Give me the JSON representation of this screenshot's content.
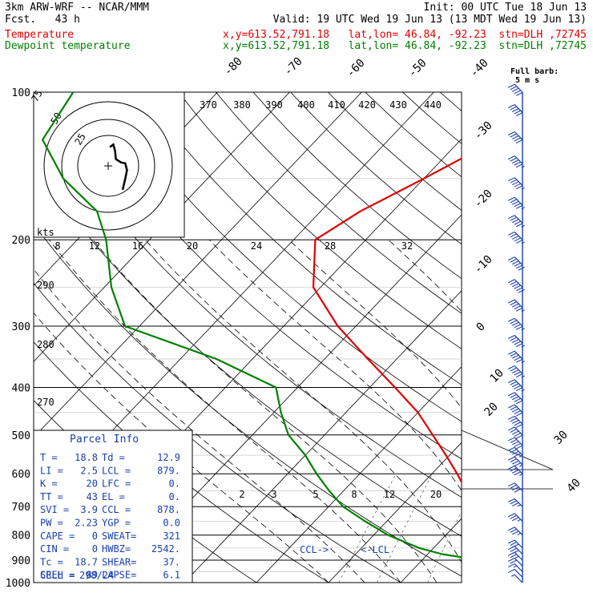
{
  "header": {
    "model": "3km ARW-WRF -- NCAR/MMM",
    "init": "Init: 00 UTC Tue 18 Jun 13",
    "fcst_label": "Fcst.",
    "fcst_value": "43 h",
    "valid": "Valid: 19 UTC Wed 19 Jun 13 (13 MDT Wed 19 Jun 13)",
    "temp_label": "Temperature",
    "temp_loc": "x,y=613.52,791.18   lat,lon= 46.84, -92.23  stn=DLH ,72745",
    "dew_label": "Dewpoint temperature",
    "dew_loc": "x,y=613.52,791.18   lat,lon= 46.84, -92.23  stn=DLH ,72745"
  },
  "colors": {
    "temperature": "#e00000",
    "dewpoint": "#008000",
    "parcel_info": "#1a3fb0",
    "barbs": "#1a3fb0"
  },
  "chart_data": {
    "type": "line",
    "yscale": "log-pressure",
    "ylim": [
      1000,
      100
    ],
    "pressure_levels": [
      100,
      200,
      300,
      400,
      500,
      600,
      700,
      800,
      900,
      1000
    ],
    "skew_t_labels": [
      -80,
      -70,
      -60,
      -50,
      -40,
      -30,
      -20,
      -10,
      0,
      10,
      20,
      30,
      40
    ],
    "theta_labels": [
      370,
      380,
      390,
      400,
      410,
      420,
      430,
      440
    ],
    "theta_e_labels": [
      290,
      280,
      270
    ],
    "mixing_ratio_labels_top": [
      8,
      12,
      16,
      20,
      24,
      28,
      32
    ],
    "mixing_ratio_labels_low": [
      2,
      3,
      5,
      8,
      12,
      20
    ],
    "series": [
      {
        "name": "Temperature",
        "pressure": [
          1000,
          975,
          950,
          925,
          900,
          875,
          850,
          800,
          750,
          700,
          650,
          600,
          550,
          500,
          450,
          400,
          350,
          300,
          250,
          200,
          175,
          150,
          125,
          100
        ],
        "temperature": [
          18.8,
          17.0,
          15.3,
          13.5,
          11.5,
          10.5,
          8.5,
          6.5,
          3.5,
          0.5,
          -3.0,
          -6.5,
          -10.5,
          -15.0,
          -20.0,
          -26.5,
          -34.0,
          -42.5,
          -51.0,
          -57.0,
          -54.5,
          -50.0,
          -45.0,
          -45.5
        ]
      },
      {
        "name": "Dewpoint temperature",
        "pressure": [
          1000,
          975,
          950,
          925,
          900,
          875,
          850,
          800,
          750,
          700,
          650,
          600,
          550,
          500,
          450,
          400,
          350,
          300,
          250,
          200,
          175,
          150,
          125,
          100
        ],
        "temperature": [
          12.9,
          12.5,
          12.0,
          10.8,
          8.0,
          2.0,
          -2.0,
          -8.0,
          -13.0,
          -18.0,
          -22.0,
          -26.0,
          -30.0,
          -35.0,
          -39.0,
          -43.0,
          -55.0,
          -72.0,
          -79.0,
          -86.0,
          -91.0,
          -100.0,
          -108.0,
          -110.0
        ]
      }
    ],
    "annotations": [
      "CCL->",
      "<-LCL",
      "kts",
      "Full barb:",
      "5 m s"
    ]
  },
  "hodograph": {
    "ring_labels": [
      "75",
      "50",
      "25"
    ],
    "unit": "kts",
    "trace": [
      [
        2,
        22
      ],
      [
        6,
        25
      ],
      [
        8,
        18
      ],
      [
        9,
        8
      ],
      [
        15,
        4
      ],
      [
        20,
        3
      ],
      [
        22,
        -5
      ],
      [
        20,
        -15
      ],
      [
        17,
        -28
      ]
    ]
  },
  "parcel": {
    "title": "Parcel Info",
    "rows": [
      [
        "T   =",
        "18.8",
        "Td =",
        "12.9"
      ],
      [
        "LI  =",
        "2.5",
        "LCL =",
        "879."
      ],
      [
        "K   =",
        "20",
        "LFC =",
        "0."
      ],
      [
        "TT  =",
        "43",
        "EL  =",
        "0."
      ],
      [
        "SVI =",
        "3.9",
        "CCL =",
        "878."
      ],
      [
        "PW  =",
        "2.23",
        "YGP =",
        "0.0"
      ],
      [
        "CAPE =",
        "0",
        "SWEAT=",
        "321"
      ],
      [
        "CIN  =",
        "0",
        "HWBZ=",
        "2542."
      ],
      [
        "Tc   =",
        "18.7",
        "SHEAR=",
        "37."
      ],
      [
        "SREH =",
        "89",
        "LAPSE=",
        "6.1"
      ]
    ],
    "cell_label": "CELL =",
    "cell_value": "298/24"
  },
  "barbs": {
    "levels": [
      1000,
      975,
      950,
      925,
      900,
      875,
      850,
      800,
      750,
      700,
      650,
      600,
      575,
      550,
      525,
      500,
      475,
      450,
      425,
      400,
      375,
      350,
      325,
      300,
      275,
      250,
      225,
      200,
      185,
      170,
      155,
      140,
      125,
      110,
      100
    ],
    "speeds_kt": [
      5,
      10,
      15,
      20,
      25,
      30,
      32,
      35,
      35,
      35,
      40,
      45,
      45,
      45,
      50,
      50,
      50,
      50,
      50,
      55,
      55,
      55,
      55,
      55,
      55,
      60,
      60,
      55,
      55,
      55,
      55,
      55,
      50,
      50,
      50
    ]
  }
}
